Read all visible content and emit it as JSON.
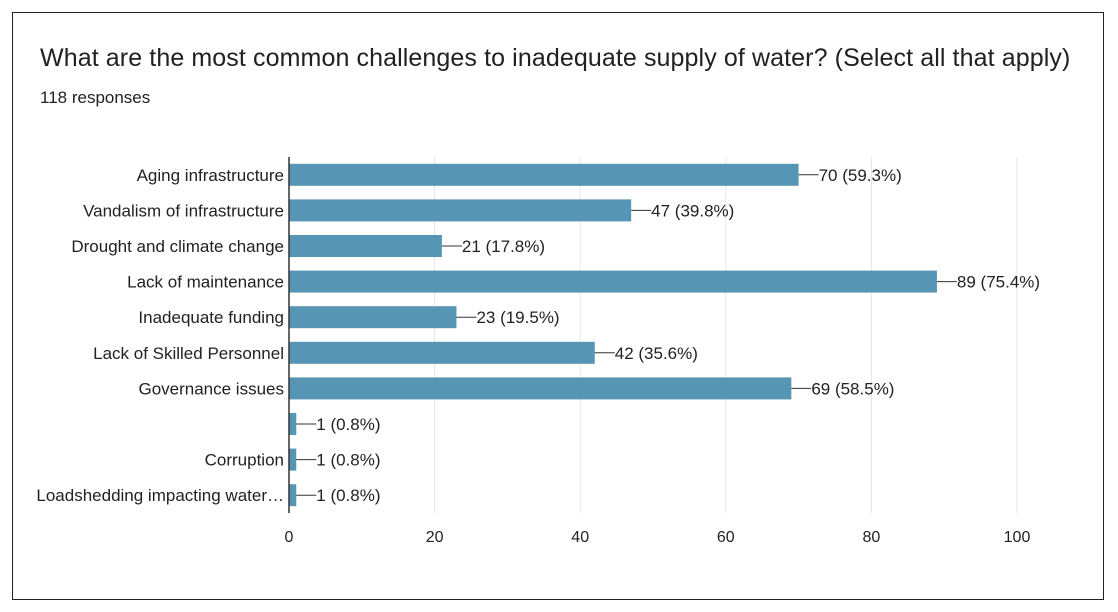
{
  "question": {
    "title": "What are the most common challenges to inadequate supply of water? (Select all that apply)",
    "responses": "118 responses"
  },
  "colors": {
    "bar": "#5795b4",
    "grid": "#e6e6e6",
    "axis": "#333333",
    "text": "#222222"
  },
  "chart_data": {
    "type": "bar",
    "orientation": "horizontal",
    "title": "",
    "xlabel": "",
    "ylabel": "",
    "xlim": [
      0,
      100
    ],
    "x_ticks": [
      0,
      20,
      40,
      60,
      80,
      100
    ],
    "grid": true,
    "categories": [
      "Aging infrastructure",
      "Vandalism of infrastructure",
      "Drought and climate change",
      "Lack of maintenance",
      "Inadequate funding",
      "Lack of Skilled Personnel",
      "Governance issues",
      "",
      "Corruption",
      "Loadshedding impacting water…"
    ],
    "values": [
      70,
      47,
      21,
      89,
      23,
      42,
      69,
      1,
      1,
      1
    ],
    "value_labels": [
      "70 (59.3%)",
      "47 (39.8%)",
      "21 (17.8%)",
      "89 (75.4%)",
      "23 (19.5%)",
      "42 (35.6%)",
      "69 (58.5%)",
      "1 (0.8%)",
      "1 (0.8%)",
      "1 (0.8%)"
    ]
  }
}
